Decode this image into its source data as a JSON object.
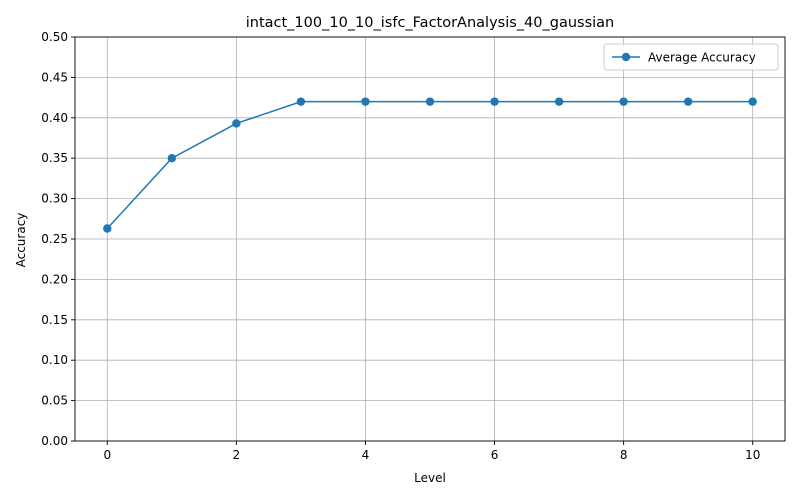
{
  "chart_data": {
    "type": "line",
    "title": "intact_100_10_10_isfc_FactorAnalysis_40_gaussian",
    "xlabel": "Level",
    "ylabel": "Accuracy",
    "xlim": [
      -0.5,
      10.5
    ],
    "ylim": [
      0,
      0.5
    ],
    "x_ticks": [
      0,
      2,
      4,
      6,
      8,
      10
    ],
    "x_tick_labels": [
      "0",
      "2",
      "4",
      "6",
      "8",
      "10"
    ],
    "y_ticks": [
      0,
      0.05,
      0.1,
      0.15,
      0.2,
      0.25,
      0.3,
      0.35,
      0.4,
      0.45,
      0.5
    ],
    "y_tick_labels": [
      "0.00",
      "0.05",
      "0.10",
      "0.15",
      "0.20",
      "0.25",
      "0.30",
      "0.35",
      "0.40",
      "0.45",
      "0.50"
    ],
    "grid": true,
    "legend_position": "top-right",
    "series": [
      {
        "name": "Average Accuracy",
        "color": "#1f77b4",
        "marker": "circle",
        "x": [
          0,
          1,
          2,
          3,
          4,
          5,
          6,
          7,
          8,
          9,
          10
        ],
        "y": [
          0.263,
          0.35,
          0.393,
          0.42,
          0.42,
          0.42,
          0.42,
          0.42,
          0.42,
          0.42,
          0.42
        ]
      }
    ]
  }
}
